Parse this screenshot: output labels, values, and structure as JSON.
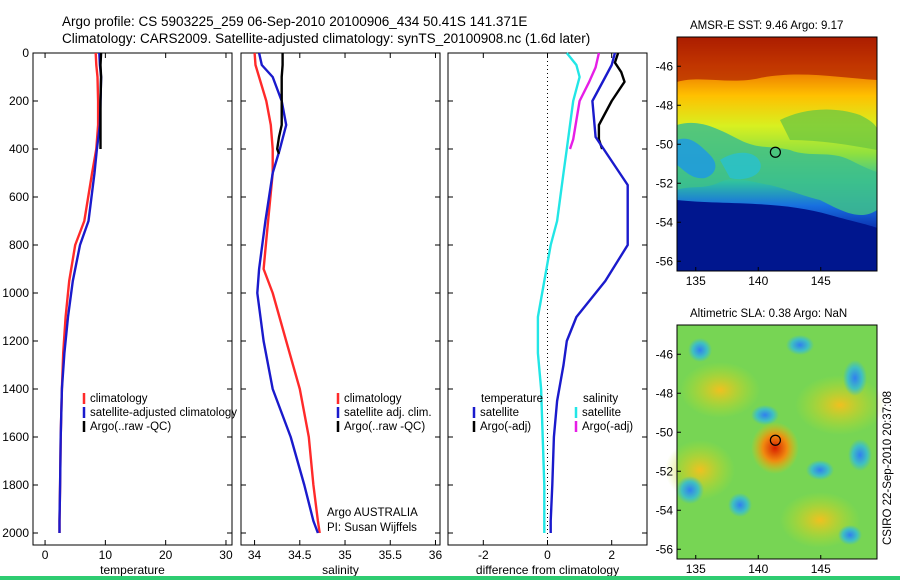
{
  "header": {
    "line1": "Argo profile: CS 5903225_259 06-Sep-2010 20100906_434 50.41S 141.371E",
    "line2": "Climatology: CARS2009. Satellite-adjusted climatology: synTS_20100908.nc (1.6d later)"
  },
  "colors": {
    "climatology": "#ff2a2a",
    "satellite": "#1a1acc",
    "argo": "#000000",
    "temp_sat_diff": "#22e6e6",
    "sal_argo_diff": "#e61ee6"
  },
  "chart_data": [
    {
      "type": "line",
      "panel": "temperature",
      "xlabel": "temperature",
      "ylabel": "",
      "xlim": [
        -2,
        31
      ],
      "ylim": [
        2050,
        0
      ],
      "xticks": [
        0,
        10,
        20,
        30
      ],
      "yticks": [
        0,
        200,
        400,
        600,
        800,
        1000,
        1200,
        1400,
        1600,
        1800,
        2000
      ],
      "legend": [
        "climatology",
        "satellite-adjusted climatology",
        "Argo(..raw -QC)"
      ],
      "series": [
        {
          "name": "climatology",
          "x": [
            8.4,
            8.5,
            8.7,
            8.8,
            8.8,
            8.5,
            7.8,
            6.5,
            5.0,
            4.0,
            3.4,
            3.0,
            2.8,
            2.6,
            2.5,
            2.4,
            2.4
          ],
          "y": [
            0,
            50,
            100,
            200,
            300,
            400,
            500,
            700,
            800,
            950,
            1100,
            1250,
            1400,
            1600,
            1800,
            1950,
            2000
          ]
        },
        {
          "name": "satellite-adjusted climatology",
          "x": [
            9.0,
            9.1,
            9.3,
            9.2,
            9.1,
            8.6,
            8.2,
            7.2,
            5.8,
            4.6,
            3.8,
            3.2,
            2.8,
            2.6,
            2.5,
            2.4,
            2.4
          ],
          "y": [
            0,
            50,
            100,
            200,
            300,
            400,
            500,
            700,
            800,
            950,
            1100,
            1250,
            1400,
            1600,
            1800,
            1950,
            2000
          ]
        },
        {
          "name": "Argo(..raw -QC)",
          "x": [
            9.3,
            9.2,
            9.3,
            9.2,
            9.2,
            9.2,
            9.2
          ],
          "y": [
            0,
            50,
            100,
            200,
            300,
            380,
            400
          ]
        }
      ]
    },
    {
      "type": "line",
      "panel": "salinity",
      "xlabel": "salinity",
      "ylabel": "",
      "xlim": [
        33.85,
        36.05
      ],
      "ylim": [
        2050,
        0
      ],
      "xticks": [
        34,
        34.5,
        35,
        35.5,
        36
      ],
      "yticks": [
        0,
        200,
        400,
        600,
        800,
        1000,
        1200,
        1400,
        1600,
        1800,
        2000
      ],
      "legend": [
        "climatology",
        "satellite adj. clim.",
        "Argo(..raw -QC)"
      ],
      "annotation": [
        "Argo AUSTRALIA",
        "PI: Susan Wijffels"
      ],
      "series": [
        {
          "name": "climatology",
          "x": [
            34.0,
            34.01,
            34.05,
            34.13,
            34.18,
            34.2,
            34.2,
            34.15,
            34.1,
            34.2,
            34.35,
            34.5,
            34.6,
            34.65,
            34.7,
            34.72
          ],
          "y": [
            0,
            50,
            100,
            200,
            300,
            400,
            500,
            700,
            900,
            1000,
            1200,
            1400,
            1600,
            1800,
            1950,
            2000
          ]
        },
        {
          "name": "satellite adj. clim.",
          "x": [
            34.05,
            34.08,
            34.2,
            34.3,
            34.35,
            34.28,
            34.2,
            34.12,
            34.05,
            34.03,
            34.1,
            34.2,
            34.4,
            34.55,
            34.65,
            34.7
          ],
          "y": [
            0,
            50,
            100,
            200,
            300,
            400,
            500,
            700,
            900,
            1000,
            1200,
            1400,
            1600,
            1800,
            1950,
            2000
          ]
        },
        {
          "name": "Argo(..raw -QC)",
          "x": [
            34.31,
            34.31,
            34.3,
            34.3,
            34.3,
            34.27,
            34.25,
            34.27
          ],
          "y": [
            0,
            50,
            100,
            200,
            300,
            350,
            400,
            420
          ]
        }
      ]
    },
    {
      "type": "line",
      "panel": "difference",
      "xlabel": "difference from climatology",
      "ylabel": "",
      "xlim": [
        -3.1,
        3.1
      ],
      "ylim": [
        2050,
        0
      ],
      "xticks": [
        -2,
        0,
        2
      ],
      "yticks": [
        0,
        200,
        400,
        600,
        800,
        1000,
        1200,
        1400,
        1600,
        1800,
        2000
      ],
      "legend_left_title": "temperature",
      "legend_right_title": "salinity",
      "legend": [
        "satellite",
        "Argo(-adj)",
        "satellite",
        "Argo(-adj)"
      ],
      "series": [
        {
          "name": "temperature satellite",
          "x": [
            0.6,
            0.9,
            1.0,
            0.8,
            0.7,
            0.6,
            0.5,
            0.3,
            0.1,
            -0.1,
            -0.3,
            -0.3,
            -0.2,
            -0.15,
            -0.1,
            -0.1,
            -0.1
          ],
          "y": [
            0,
            50,
            100,
            200,
            300,
            400,
            500,
            700,
            800,
            950,
            1100,
            1250,
            1400,
            1600,
            1800,
            1950,
            2000
          ]
        },
        {
          "name": "temperature Argo(-adj)",
          "x": [
            2.2,
            2.1,
            2.3,
            2.4,
            2.0,
            1.6,
            1.6,
            1.7
          ],
          "y": [
            0,
            40,
            80,
            120,
            200,
            300,
            360,
            400
          ]
        },
        {
          "name": "salinity satellite",
          "x": [
            2.1,
            2.0,
            1.8,
            1.4,
            1.5,
            2.5,
            2.5,
            1.8,
            0.9,
            0.6,
            0.5,
            0.3,
            0.2,
            0.15,
            0.1,
            0.1
          ],
          "y": [
            0,
            50,
            100,
            200,
            350,
            550,
            800,
            950,
            1100,
            1200,
            1300,
            1450,
            1600,
            1800,
            1950,
            2000
          ]
        },
        {
          "name": "salinity Argo(-adj)",
          "x": [
            1.6,
            1.5,
            1.3,
            1.0,
            0.9,
            0.8,
            0.7
          ],
          "y": [
            0,
            60,
            120,
            200,
            280,
            360,
            400
          ]
        }
      ]
    },
    {
      "type": "heatmap",
      "panel": "sst",
      "title": "AMSR-E SST: 9.46  Argo: 9.17",
      "xlim": [
        133.5,
        149.5
      ],
      "ylim": [
        -56.5,
        -44.5
      ],
      "xticks": [
        135,
        140,
        145
      ],
      "yticks": [
        -46,
        -48,
        -50,
        -52,
        -54,
        -56
      ],
      "marker": {
        "lon": 141.371,
        "lat": -50.41
      }
    },
    {
      "type": "heatmap",
      "panel": "sla",
      "title": "Altimetric SLA: 0.38  Argo: NaN",
      "xlim": [
        133.5,
        149.5
      ],
      "ylim": [
        -56.5,
        -44.5
      ],
      "xticks": [
        135,
        140,
        145
      ],
      "yticks": [
        -46,
        -48,
        -50,
        -52,
        -54,
        -56
      ],
      "marker": {
        "lon": 141.371,
        "lat": -50.41
      }
    }
  ],
  "side_label": "CSIRO 22-Sep-2010 20:37:08"
}
